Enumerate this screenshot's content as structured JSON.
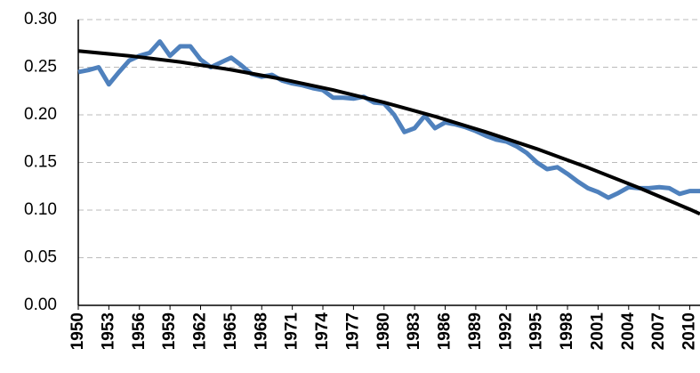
{
  "chart_data": {
    "type": "line",
    "series": [
      {
        "color": "#4f81bd",
        "x": [
          1950,
          1951,
          1952,
          1953,
          1954,
          1955,
          1956,
          1957,
          1958,
          1959,
          1960,
          1961,
          1962,
          1963,
          1964,
          1965,
          1966,
          1967,
          1968,
          1969,
          1970,
          1971,
          1972,
          1973,
          1974,
          1975,
          1976,
          1977,
          1978,
          1979,
          1980,
          1981,
          1982,
          1983,
          1984,
          1985,
          1986,
          1987,
          1988,
          1989,
          1990,
          1991,
          1992,
          1993,
          1994,
          1995,
          1996,
          1997,
          1998,
          1999,
          2000,
          2001,
          2002,
          2003,
          2004,
          2005,
          2006,
          2007,
          2008,
          2009,
          2010,
          2011
        ],
        "values": [
          0.245,
          0.247,
          0.25,
          0.232,
          0.245,
          0.257,
          0.262,
          0.265,
          0.277,
          0.262,
          0.272,
          0.272,
          0.258,
          0.25,
          0.255,
          0.26,
          0.252,
          0.243,
          0.24,
          0.242,
          0.236,
          0.233,
          0.231,
          0.228,
          0.226,
          0.218,
          0.218,
          0.217,
          0.219,
          0.213,
          0.212,
          0.2,
          0.182,
          0.186,
          0.199,
          0.186,
          0.192,
          0.19,
          0.187,
          0.183,
          0.178,
          0.174,
          0.172,
          0.167,
          0.16,
          0.15,
          0.143,
          0.145,
          0.138,
          0.13,
          0.123,
          0.119,
          0.113,
          0.118,
          0.124,
          0.123,
          0.123,
          0.124,
          0.123,
          0.117,
          0.12,
          0.12
        ]
      },
      {
        "color": "#000000",
        "x": [
          1950,
          1955,
          1960,
          1965,
          1970,
          1975,
          1980,
          1985,
          1990,
          1995,
          2000,
          2005,
          2010,
          2011
        ],
        "values": [
          0.267,
          0.262,
          0.2555,
          0.2473,
          0.2375,
          0.2261,
          0.213,
          0.1983,
          0.182,
          0.1642,
          0.1446,
          0.1235,
          0.1008,
          0.096
        ]
      }
    ],
    "xlim": [
      1950,
      2011
    ],
    "xticks": [
      1950,
      1953,
      1956,
      1959,
      1962,
      1965,
      1968,
      1971,
      1974,
      1977,
      1980,
      1983,
      1986,
      1989,
      1992,
      1995,
      1998,
      2001,
      2004,
      2007,
      2010
    ],
    "ylim": [
      0,
      0.3
    ],
    "yticks": [
      {
        "value": 0,
        "label": "0.00"
      },
      {
        "value": 0.05,
        "label": "0.05"
      },
      {
        "value": 0.1,
        "label": "0.10"
      },
      {
        "value": 0.15,
        "label": "0.15"
      },
      {
        "value": 0.2,
        "label": "0.20"
      },
      {
        "value": 0.25,
        "label": "0.25"
      },
      {
        "value": 0.3,
        "label": "0.30"
      }
    ],
    "grid": true
  }
}
